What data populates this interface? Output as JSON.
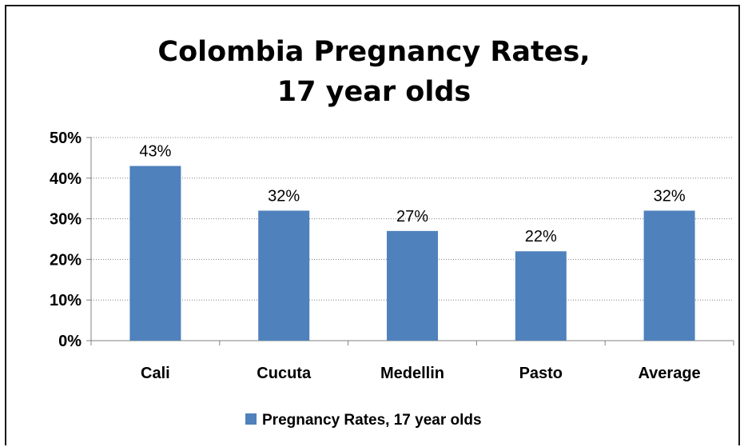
{
  "chart_data": {
    "type": "bar",
    "title_lines": [
      "Colombia Pregnancy Rates,",
      "17 year olds"
    ],
    "categories": [
      "Cali",
      "Cucuta",
      "Medellin",
      "Pasto",
      "Average"
    ],
    "series": [
      {
        "name": "Pregnancy Rates, 17 year olds",
        "values": [
          43,
          32,
          27,
          22,
          32
        ]
      }
    ],
    "data_labels": [
      "43%",
      "32%",
      "27%",
      "22%",
      "32%"
    ],
    "yticks": [
      0,
      10,
      20,
      30,
      40,
      50
    ],
    "ytick_labels": [
      "0%",
      "10%",
      "20%",
      "30%",
      "40%",
      "50%"
    ],
    "ylim": [
      0,
      50
    ],
    "grid": true,
    "legend_position": "bottom",
    "bar_color": "#4F81BD"
  }
}
